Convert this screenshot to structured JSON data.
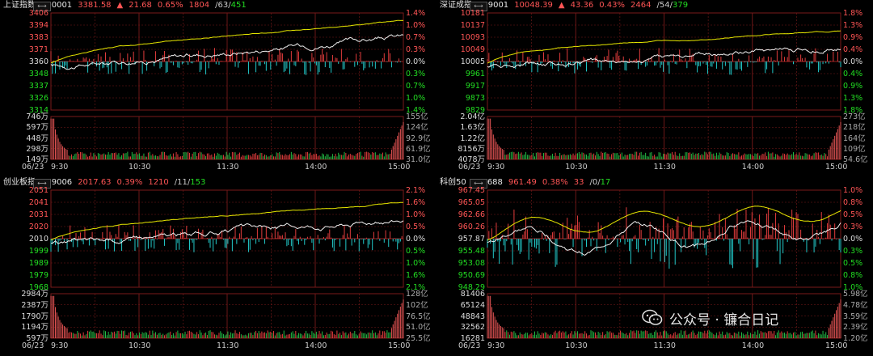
{
  "panels": [
    {
      "name": "上证指数",
      "code": "000001",
      "price": "3381.58",
      "arrow": "▲",
      "change": "21.68",
      "pct": "0.65%",
      "adv": "1804",
      "flat": "63",
      "dec": "451",
      "price_left": [
        "3406",
        "3394",
        "3383",
        "3371",
        "3360",
        "3348",
        "3337",
        "3326",
        "3314"
      ],
      "price_right": [
        "1.4%",
        "1.0%",
        "0.7%",
        "0.3%",
        "0.0%",
        "0.3%",
        "0.7%",
        "1.0%",
        "1.4%"
      ],
      "vol_left": [
        "746万",
        "597万",
        "448万",
        "298万",
        "149万"
      ],
      "vol_right": [
        "155亿",
        "124亿",
        "92.9亿",
        "61.9亿",
        "31.0亿"
      ],
      "date": "06/23",
      "times": [
        "9:30",
        "10:30",
        "11:30",
        "14:00",
        "15:00"
      ]
    },
    {
      "name": "深证成指",
      "code": "399001",
      "price": "10048.39",
      "arrow": "▲",
      "change": "43.36",
      "pct": "0.43%",
      "adv": "2464",
      "flat": "54",
      "dec": "379",
      "price_left": [
        "10181",
        "10137",
        "10093",
        "10049",
        "10005",
        "9961",
        "9917",
        "9873",
        "9829"
      ],
      "price_right": [
        "1.8%",
        "1.3%",
        "0.9%",
        "0.4%",
        "0.0%",
        "0.4%",
        "0.9%",
        "1.3%",
        "1.8%"
      ],
      "vol_left": [
        "2.04亿",
        "1.63亿",
        "1.22亿",
        "8156万",
        "4078万"
      ],
      "vol_right": [
        "273亿",
        "218亿",
        "164亿",
        "109亿",
        "54.6亿"
      ],
      "date": "06/23",
      "times": [
        "9:30",
        "10:30",
        "11:30",
        "14:00",
        "15:00"
      ]
    },
    {
      "name": "创业板指",
      "code": "399006",
      "price": "2017.63",
      "arrow": "",
      "change": "",
      "pct": "0.39%",
      "adv": "1210",
      "flat": "11",
      "dec": "153",
      "price_left": [
        "2051",
        "2041",
        "2031",
        "2020",
        "2010",
        "1999",
        "1989",
        "1979",
        "1968"
      ],
      "price_right": [
        "2.1%",
        "1.6%",
        "1.0%",
        "0.5%",
        "0.0%",
        "0.5%",
        "1.0%",
        "1.6%",
        "2.1%"
      ],
      "vol_left": [
        "2984万",
        "2387万",
        "1790万",
        "1194万",
        "597万"
      ],
      "vol_right": [
        "128亿",
        "102亿",
        "76.5亿",
        "51.0亿",
        "25.5亿"
      ],
      "date": "06/23",
      "times": [
        "9:30",
        "10:30",
        "11:30",
        "14:00",
        "15:00"
      ]
    },
    {
      "name": "科创50",
      "code": "000688",
      "price": "961.49",
      "arrow": "",
      "change": "",
      "pct": "0.38%",
      "adv": "33",
      "flat": "0",
      "dec": "17",
      "price_left": [
        "967.45",
        "965.05",
        "962.66",
        "960.26",
        "957.87",
        "955.48",
        "953.08",
        "950.69",
        "948.29"
      ],
      "price_right": [
        "1.0%",
        "0.8%",
        "0.5%",
        "0.3%",
        "0.0%",
        "0.3%",
        "0.5%",
        "0.8%",
        "1.0%"
      ],
      "vol_left": [
        "81406",
        "65124",
        "48843",
        "32562",
        "16281"
      ],
      "vol_right": [
        "5.98亿",
        "4.78亿",
        "3.59亿",
        "2.39亿",
        "1.20亿"
      ],
      "date": "06/23",
      "times": [
        "9:30",
        "10:30",
        "11:30",
        "14:00",
        "15:00"
      ]
    }
  ],
  "toggle_icon": "⟷",
  "watermark": {
    "text": "公众号 · 镰合日记",
    "icon": "wechat-icon"
  },
  "colors": {
    "up": "#ff5555",
    "down": "#22dd22",
    "grid": "#7a1a1a",
    "price_line": "#f0f0f0",
    "avg_line": "#e6e600",
    "vol": "#e85555",
    "bar_up": "#e03c3c",
    "bar_down": "#22c8c8"
  }
}
